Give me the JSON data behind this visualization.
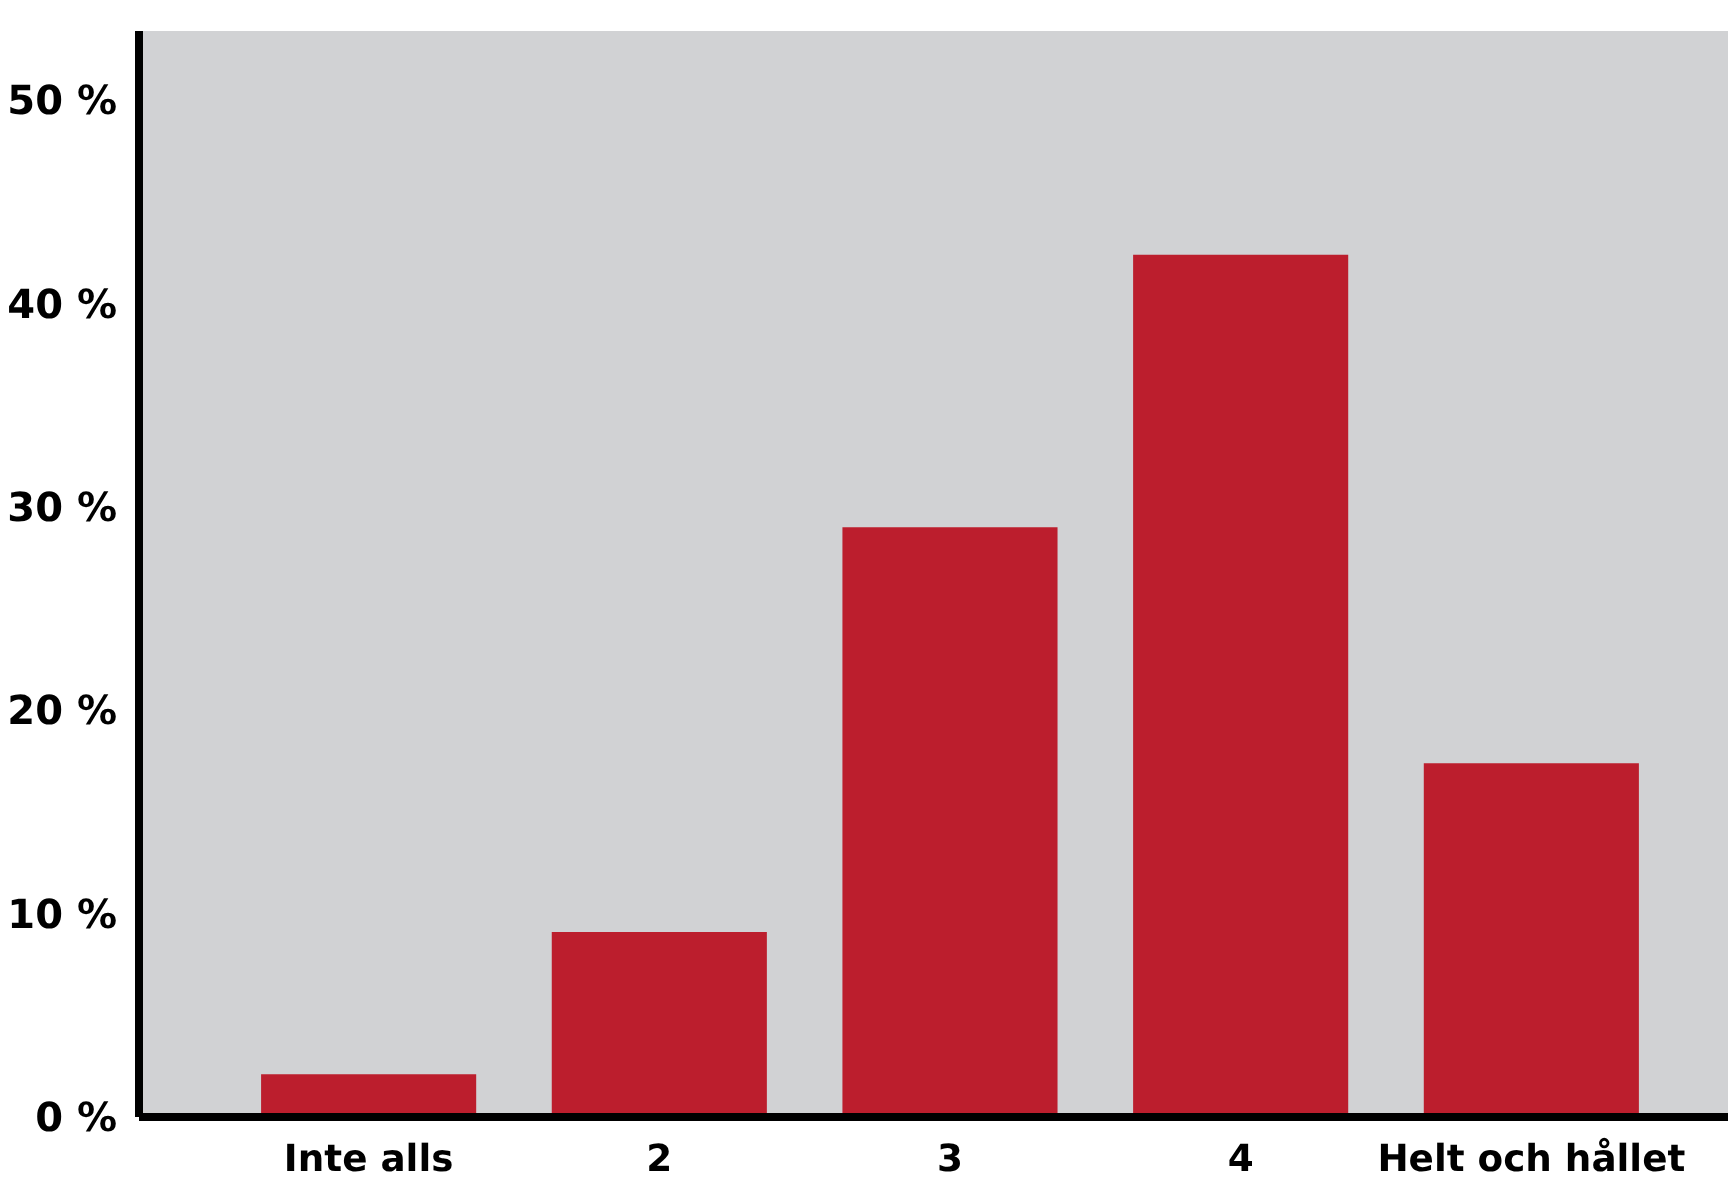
{
  "chart_data": {
    "type": "bar",
    "categories": [
      "Inte alls",
      "2",
      "3",
      "4",
      "Helt och hållet"
    ],
    "values": [
      2.1,
      9.1,
      29.0,
      42.4,
      17.4
    ],
    "color": "#bc1e2d",
    "ylim": [
      0,
      53.4
    ],
    "yticks": [
      {
        "value": 0,
        "label": "0 %"
      },
      {
        "value": 10,
        "label": "10 %"
      },
      {
        "value": 20,
        "label": "20 %"
      },
      {
        "value": 30,
        "label": "30 %"
      },
      {
        "value": 40,
        "label": "40 %"
      },
      {
        "value": 50,
        "label": "50 %"
      }
    ],
    "grid": false
  }
}
